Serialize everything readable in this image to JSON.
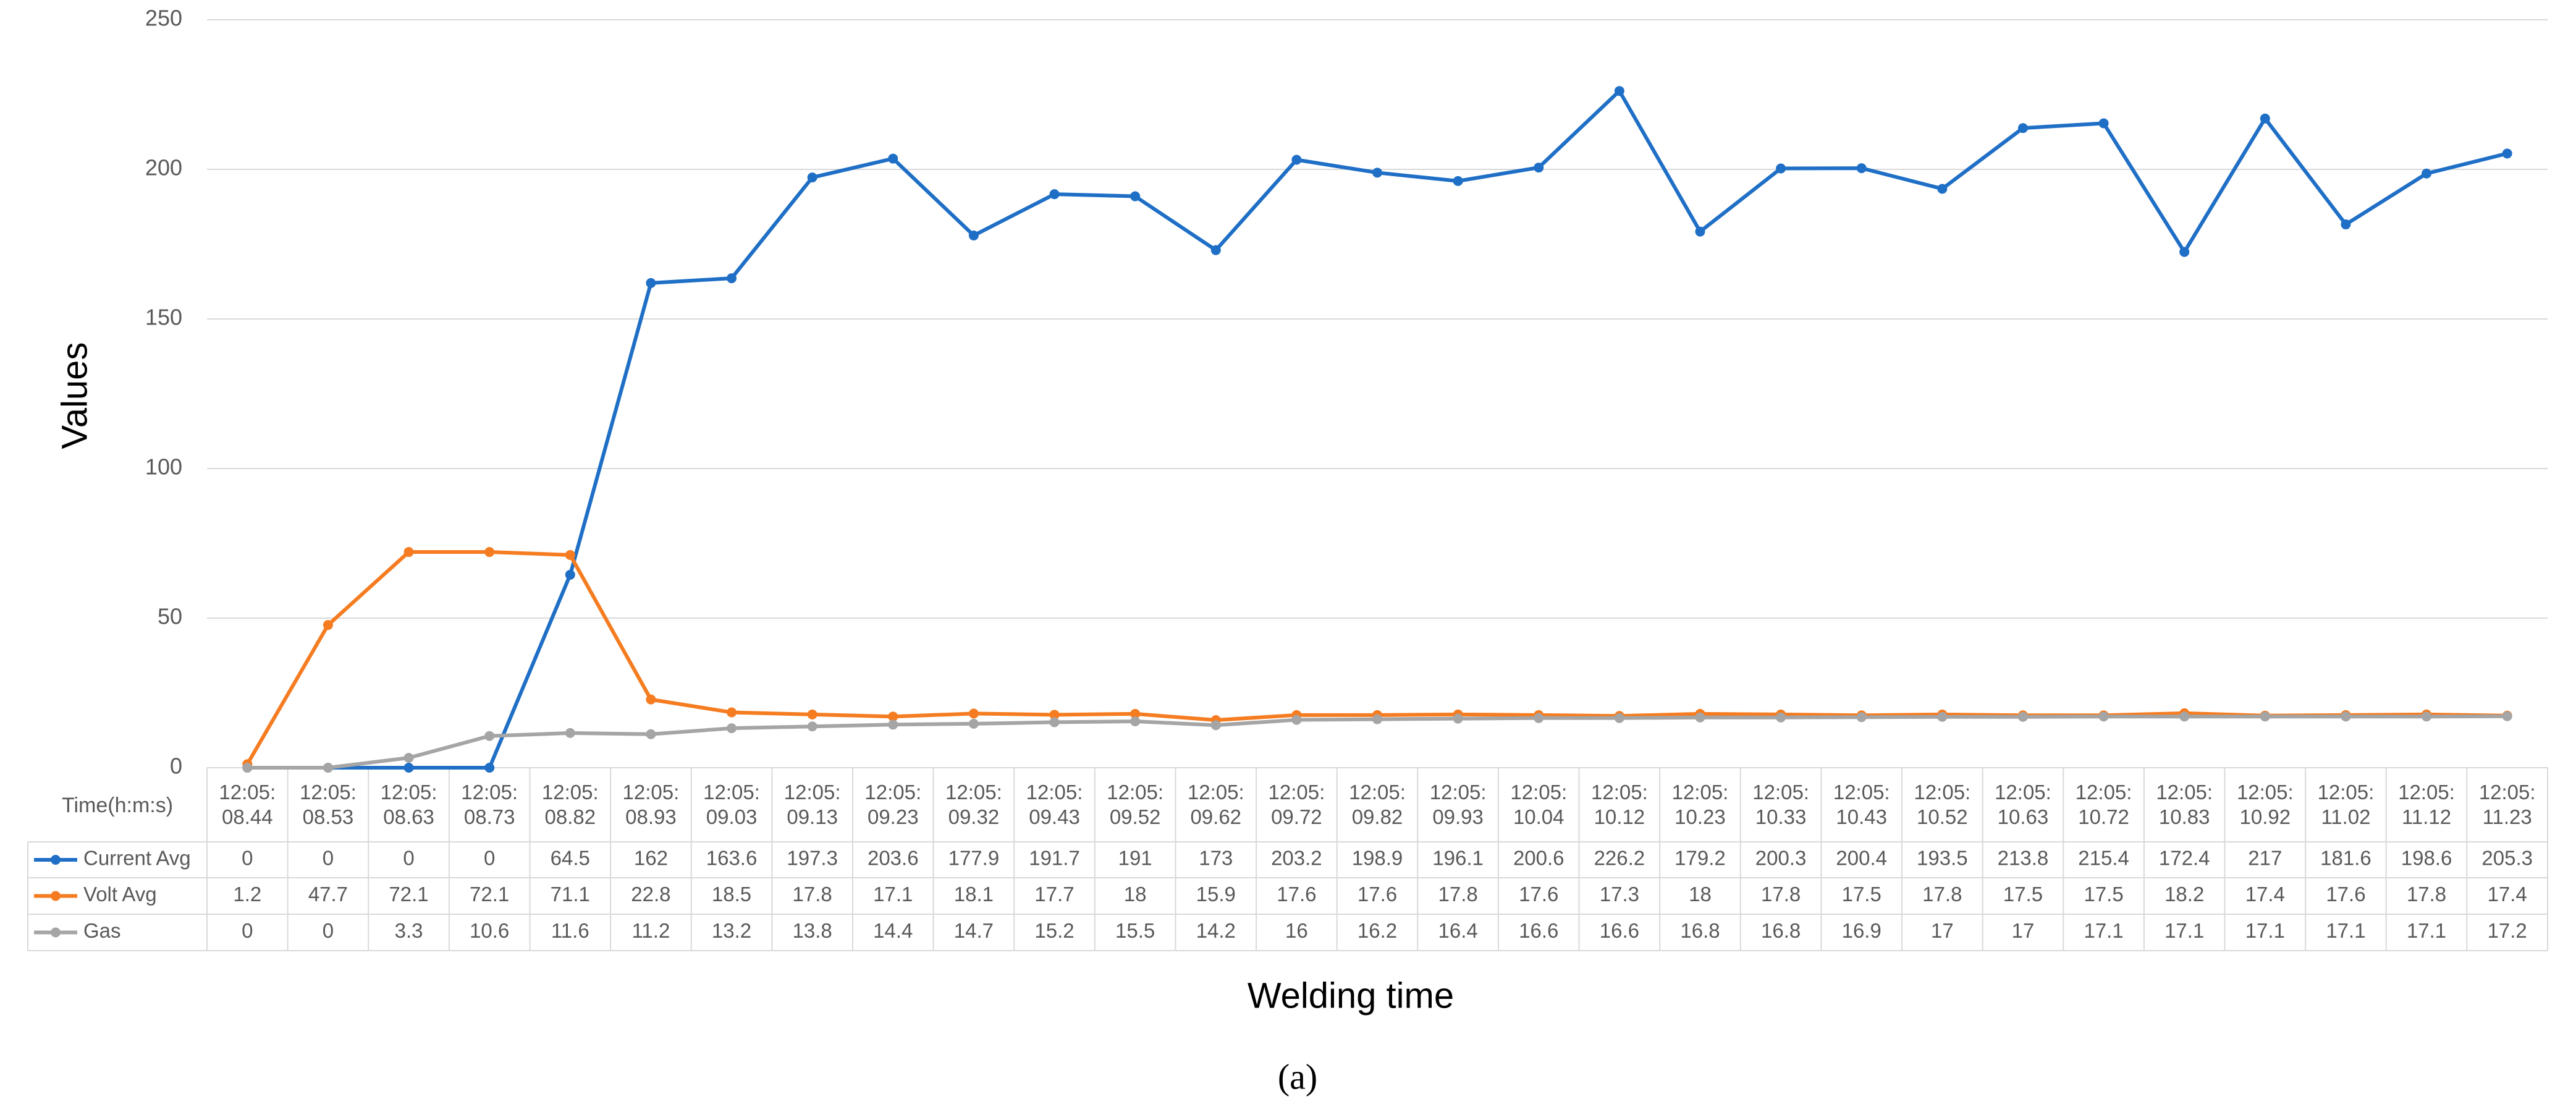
{
  "chart_data": {
    "type": "line",
    "y_label": "Values",
    "x_label": "Welding time",
    "table_header": "Time(h:m:s)",
    "caption": "(a)",
    "categories": [
      "12:05:\n08.44",
      "12:05:\n08.53",
      "12:05:\n08.63",
      "12:05:\n08.73",
      "12:05:\n08.82",
      "12:05:\n08.93",
      "12:05:\n09.03",
      "12:05:\n09.13",
      "12:05:\n09.23",
      "12:05:\n09.32",
      "12:05:\n09.43",
      "12:05:\n09.52",
      "12:05:\n09.62",
      "12:05:\n09.72",
      "12:05:\n09.82",
      "12:05:\n09.93",
      "12:05:\n10.04",
      "12:05:\n10.12",
      "12:05:\n10.23",
      "12:05:\n10.33",
      "12:05:\n10.43",
      "12:05:\n10.52",
      "12:05:\n10.63",
      "12:05:\n10.72",
      "12:05:\n10.83",
      "12:05:\n10.92",
      "12:05:\n11.02",
      "12:05:\n11.12",
      "12:05:\n11.23"
    ],
    "series": [
      {
        "name": "Current Avg",
        "color": "#1f6fc6",
        "values": [
          0,
          0,
          0,
          0,
          64.5,
          162,
          163.6,
          197.3,
          203.6,
          177.9,
          191.7,
          191,
          173,
          203.2,
          198.9,
          196.1,
          200.6,
          226.2,
          179.2,
          200.3,
          200.4,
          193.5,
          213.8,
          215.4,
          172.4,
          217,
          181.6,
          198.6,
          205.3
        ]
      },
      {
        "name": "Volt Avg",
        "color": "#f57c20",
        "values": [
          1.2,
          47.7,
          72.1,
          72.1,
          71.1,
          22.8,
          18.5,
          17.8,
          17.1,
          18.1,
          17.7,
          18,
          15.9,
          17.6,
          17.6,
          17.8,
          17.6,
          17.3,
          18,
          17.8,
          17.5,
          17.8,
          17.5,
          17.5,
          18.2,
          17.4,
          17.6,
          17.8,
          17.4
        ]
      },
      {
        "name": "Gas",
        "color": "#a5a5a5",
        "values": [
          0,
          0,
          3.3,
          10.6,
          11.6,
          11.2,
          13.2,
          13.8,
          14.4,
          14.7,
          15.2,
          15.5,
          14.2,
          16,
          16.2,
          16.4,
          16.6,
          16.6,
          16.8,
          16.8,
          16.9,
          17,
          17,
          17.1,
          17.1,
          17.1,
          17.1,
          17.1,
          17.2
        ]
      }
    ],
    "ylim": [
      0,
      250
    ],
    "yticks": [
      0,
      50,
      100,
      150,
      200,
      250
    ],
    "grid": true
  }
}
